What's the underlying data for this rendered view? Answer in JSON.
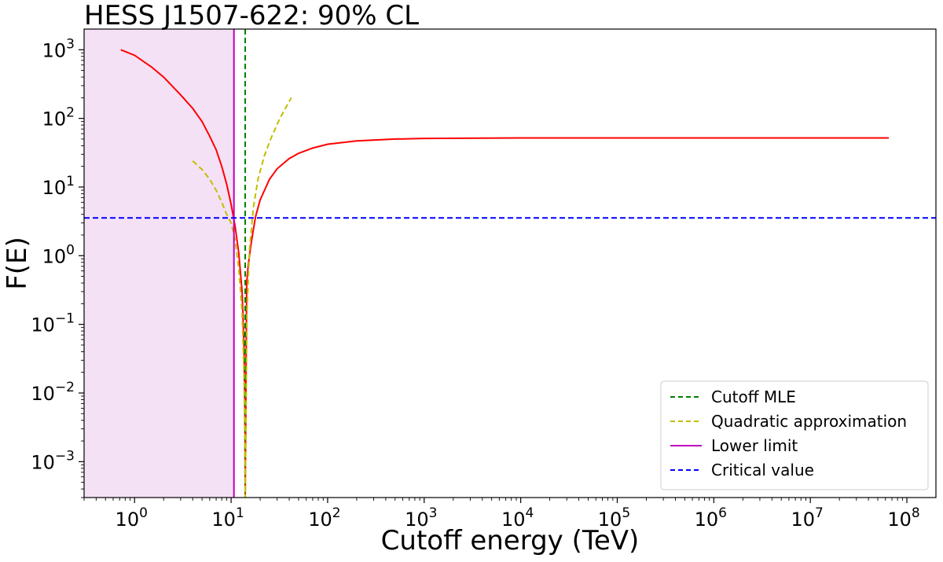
{
  "chart_data": {
    "type": "line",
    "title": "HESS J1507-622: 90% CL",
    "xlabel": "Cutoff energy (TeV)",
    "ylabel": "F(E)",
    "xscale": "log",
    "yscale": "log",
    "xlim": [
      0.3,
      200000000
    ],
    "ylim": [
      0.0003,
      2000
    ],
    "grid": false,
    "legend_position": "lower-right",
    "x_tick_labels": [
      {
        "value": 1,
        "base": "10",
        "exp": "0"
      },
      {
        "value": 10,
        "base": "10",
        "exp": "1"
      },
      {
        "value": 100,
        "base": "10",
        "exp": "2"
      },
      {
        "value": 1000,
        "base": "10",
        "exp": "3"
      },
      {
        "value": 10000,
        "base": "10",
        "exp": "4"
      },
      {
        "value": 100000,
        "base": "10",
        "exp": "5"
      },
      {
        "value": 1000000,
        "base": "10",
        "exp": "6"
      },
      {
        "value": 10000000,
        "base": "10",
        "exp": "7"
      },
      {
        "value": 100000000,
        "base": "10",
        "exp": "8"
      }
    ],
    "y_tick_labels": [
      {
        "value": 0.001,
        "base": "10",
        "exp": "−3"
      },
      {
        "value": 0.01,
        "base": "10",
        "exp": "−2"
      },
      {
        "value": 0.1,
        "base": "10",
        "exp": "−1"
      },
      {
        "value": 1,
        "base": "10",
        "exp": "0"
      },
      {
        "value": 10,
        "base": "10",
        "exp": "1"
      },
      {
        "value": 100,
        "base": "10",
        "exp": "2"
      },
      {
        "value": 1000,
        "base": "10",
        "exp": "3"
      }
    ],
    "excluded_region": {
      "x_from": 0.3,
      "x_to": 10.7,
      "color": "#f5e1f5"
    },
    "series": [
      {
        "name": "",
        "style": "solid",
        "color": "#ff0000",
        "x": [
          0.72,
          1.0,
          1.5,
          2.0,
          3.0,
          4.0,
          5.0,
          6.0,
          7.0,
          8.0,
          9.0,
          10.0,
          11.0,
          12.0,
          13.0,
          13.6,
          13.9,
          14.0,
          14.2,
          14.5,
          15.0,
          16.0,
          17.0,
          18.0,
          20.0,
          25.0,
          30.0,
          40.0,
          50.0,
          70.0,
          100.0,
          200.0,
          500.0,
          1000.0,
          10000.0,
          100000.0,
          1000000.0,
          10000000.0,
          65000000.0
        ],
        "y": [
          1000,
          830,
          560,
          400,
          220,
          140,
          90,
          55,
          35,
          20,
          11,
          5.6,
          2.7,
          1.1,
          0.3,
          0.05,
          0.005,
          0.0003,
          0.005,
          0.4,
          0.7,
          1.4,
          2.4,
          3.8,
          6.5,
          13,
          18.5,
          26,
          31,
          37,
          42,
          47,
          50,
          51,
          52,
          52,
          52,
          52,
          52
        ]
      },
      {
        "name": "Cutoff MLE",
        "style": "dashed",
        "color": "#008000",
        "vline_x": 14.0
      },
      {
        "name": "Quadratic approximation",
        "style": "dashed",
        "color": "#bfbf00",
        "x": [
          4.0,
          5.0,
          6.0,
          7.0,
          8.0,
          9.0,
          10.0,
          11.0,
          12.0,
          13.0,
          13.6,
          13.9,
          14.0,
          14.2,
          14.6,
          15.5,
          17.0,
          19.0,
          22.0,
          26.0,
          32.0,
          42.0
        ],
        "y": [
          24,
          18,
          13,
          9,
          6,
          4,
          3,
          1.7,
          0.65,
          0.15,
          0.02,
          0.002,
          0.0003,
          0.002,
          0.15,
          1.2,
          5,
          13,
          28,
          52,
          100,
          200
        ]
      },
      {
        "name": "Lower limit",
        "style": "solid",
        "color": "#bf00bf",
        "vline_x": 10.7
      },
      {
        "name": "Critical value",
        "style": "dashed",
        "color": "#0000ff",
        "hline_y": 3.55
      }
    ]
  }
}
